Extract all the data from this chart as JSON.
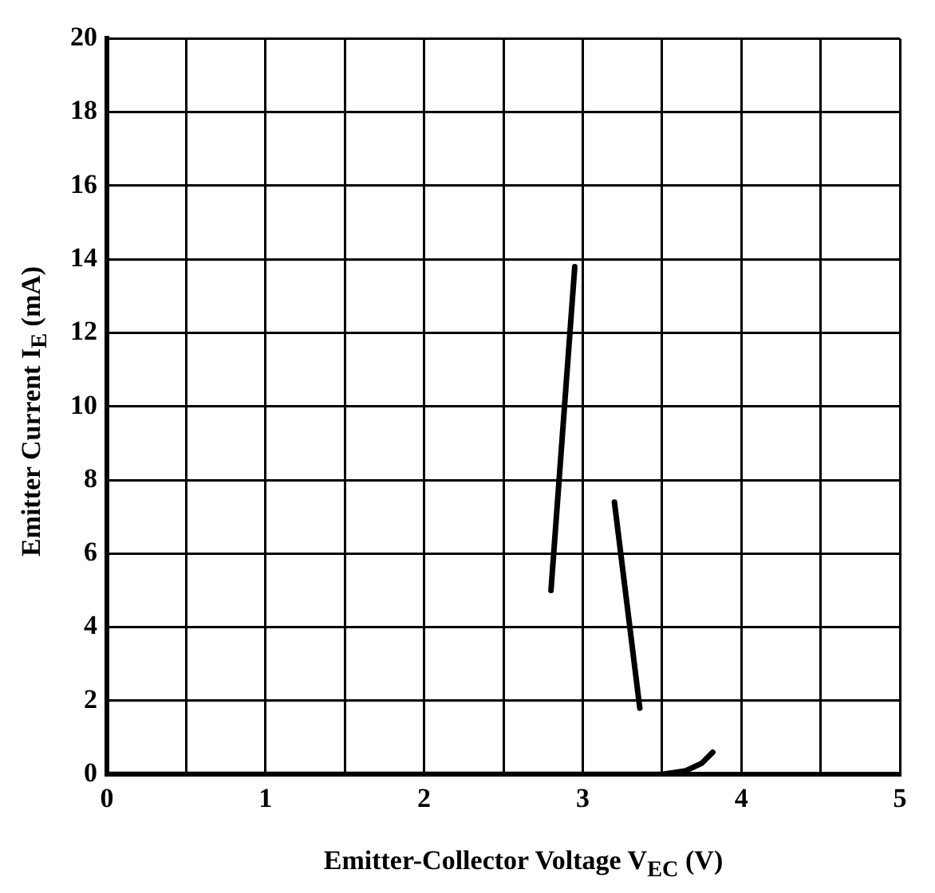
{
  "chart_data": {
    "type": "line",
    "xlabel": "Emitter-Collector Voltage V$_{EC}$ (V)",
    "ylabel": "Emitter Current I$_{E}$ (mA)",
    "series": [
      {
        "color": "#000000",
        "x": [
          2.8,
          2.95
        ],
        "values": [
          5.0,
          13.8
        ]
      },
      {
        "color": "#000000",
        "x": [
          3.2,
          3.36
        ],
        "values": [
          7.4,
          1.8
        ]
      },
      {
        "color": "#000000",
        "x": [
          0,
          3.5,
          3.65,
          3.75,
          3.82
        ],
        "values": [
          0,
          0,
          0.1,
          0.3,
          0.6
        ]
      }
    ],
    "xlim": [
      0,
      5
    ],
    "xticks": [
      0,
      {
        "value": 0.5,
        "label": null
      },
      1,
      {
        "value": 1.5,
        "label": null
      },
      2,
      {
        "value": 2.5,
        "label": null
      },
      3,
      {
        "value": 3.5,
        "label": null
      },
      4,
      {
        "value": 4.5,
        "label": null
      },
      5
    ],
    "ylim": [
      0,
      20
    ],
    "yticks": [
      0,
      2,
      4,
      6,
      8,
      10,
      12,
      14,
      16,
      18,
      20
    ],
    "grid": true,
    "legend": false,
    "marker": "none",
    "line_style": "solid"
  }
}
